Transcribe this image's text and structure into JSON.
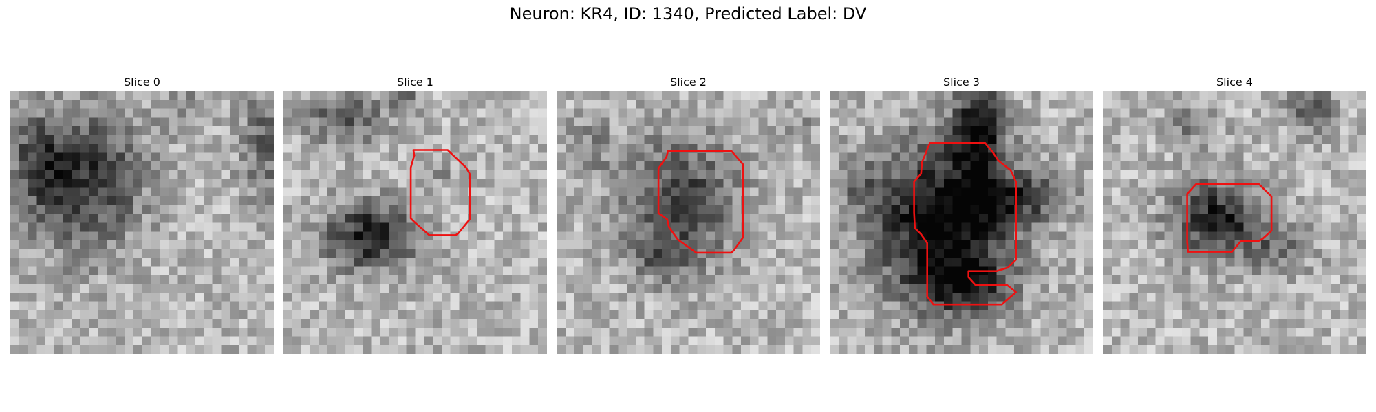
{
  "figure": {
    "title": "Neuron: KR4, ID: 1340, Predicted Label: DV",
    "panels": [
      {
        "title": "Slice 0"
      },
      {
        "title": "Slice 1"
      },
      {
        "title": "Slice 2"
      },
      {
        "title": "Slice 3"
      },
      {
        "title": "Slice 4"
      }
    ]
  },
  "colors": {
    "contour": "#ee1111",
    "background": "#ffffff"
  },
  "image_content": "grayscale pixelated microscopy patches (about 30x30 pixels each) with a red outline marking the segmented neuron"
}
